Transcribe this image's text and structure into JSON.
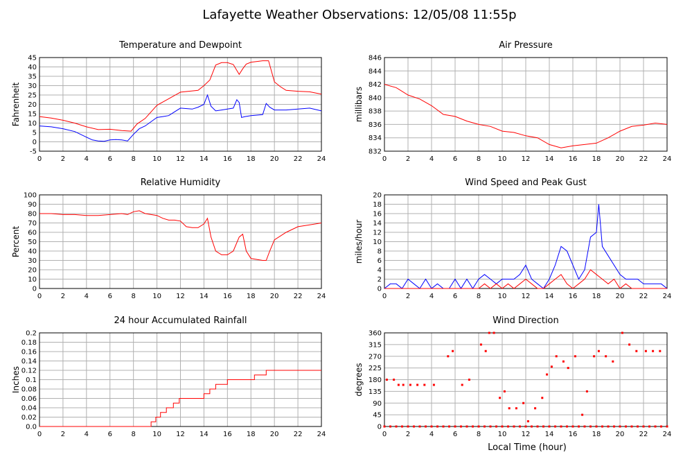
{
  "page": {
    "title": "Lafayette Weather Observations: 12/05/08 11:55p",
    "xlabel": "Local Time (hour)"
  },
  "chart_data": [
    {
      "id": "temp",
      "type": "line",
      "title": "Temperature and Dewpoint",
      "xlabel": "",
      "ylabel": "Fahrenheit",
      "xlim": [
        0,
        24
      ],
      "ylim": [
        -5,
        45
      ],
      "xticks": [
        0,
        2,
        4,
        6,
        8,
        10,
        12,
        14,
        16,
        18,
        20,
        22,
        24
      ],
      "yticks": [
        -5,
        0,
        5,
        10,
        15,
        20,
        25,
        30,
        35,
        40,
        45
      ],
      "grid": true,
      "series": [
        {
          "color": "#ff0000",
          "x": [
            0,
            1,
            2,
            3,
            4,
            5,
            6,
            7,
            7.8,
            8.3,
            9,
            10,
            11,
            12,
            13,
            13.5,
            14,
            14.5,
            15,
            15.5,
            16,
            16.5,
            17,
            17.3,
            17.6,
            18,
            19,
            19.5,
            20,
            20.5,
            21,
            22,
            23,
            24
          ],
          "y": [
            13.5,
            12.7,
            11.5,
            10,
            8,
            6.5,
            6.7,
            6,
            5.7,
            9.5,
            12.5,
            19.5,
            23,
            26.5,
            27.2,
            27.5,
            30,
            33,
            41,
            42.3,
            42.3,
            41.3,
            36,
            39,
            41.5,
            42.5,
            43.3,
            43.3,
            32,
            29.5,
            27.5,
            27,
            26.7,
            25.5
          ]
        },
        {
          "color": "#0000ff",
          "x": [
            0,
            1,
            2,
            3,
            4,
            4.5,
            5,
            5.5,
            6,
            6.5,
            7,
            7.5,
            8,
            8.5,
            9,
            10,
            10.5,
            11,
            12,
            13,
            13.5,
            14,
            14.3,
            14.6,
            15,
            15.5,
            16,
            16.5,
            16.8,
            17,
            17.2,
            17.5,
            18,
            19,
            19.3,
            19.6,
            20,
            21,
            22,
            23,
            24
          ],
          "y": [
            8.5,
            8,
            7,
            5.5,
            2.5,
            1,
            0.5,
            0.3,
            1,
            1.2,
            1,
            0.5,
            4,
            7,
            8.5,
            13,
            13.5,
            14,
            18,
            17.5,
            18.5,
            20,
            25,
            19,
            16.5,
            17,
            17.5,
            18,
            22.5,
            21,
            13,
            13.5,
            14,
            14.5,
            20.5,
            18.5,
            17,
            17,
            17.5,
            18,
            16.5
          ]
        }
      ]
    },
    {
      "id": "press",
      "type": "line",
      "title": "Air Pressure",
      "xlabel": "",
      "ylabel": "millibars",
      "xlim": [
        0,
        24
      ],
      "ylim": [
        832,
        846
      ],
      "xticks": [
        0,
        2,
        4,
        6,
        8,
        10,
        12,
        14,
        16,
        18,
        20,
        22,
        24
      ],
      "yticks": [
        832,
        834,
        836,
        838,
        840,
        842,
        844,
        846
      ],
      "grid": true,
      "series": [
        {
          "color": "#ff0000",
          "x": [
            0,
            1,
            2,
            3,
            4,
            5,
            6,
            7,
            8,
            9,
            10,
            11,
            12,
            13,
            14,
            15,
            16,
            17,
            18,
            19,
            20,
            21,
            22,
            23,
            24
          ],
          "y": [
            842,
            841.5,
            840.4,
            839.8,
            838.8,
            837.5,
            837.2,
            836.5,
            836,
            835.7,
            835,
            834.8,
            834.3,
            834,
            833,
            832.5,
            832.8,
            833,
            833.2,
            834,
            835,
            835.7,
            835.9,
            836.2,
            836
          ]
        }
      ]
    },
    {
      "id": "hum",
      "type": "line",
      "title": "Relative Humidity",
      "xlabel": "",
      "ylabel": "Percent",
      "xlim": [
        0,
        24
      ],
      "ylim": [
        0,
        100
      ],
      "xticks": [
        0,
        2,
        4,
        6,
        8,
        10,
        12,
        14,
        16,
        18,
        20,
        22,
        24
      ],
      "yticks": [
        0,
        10,
        20,
        30,
        40,
        50,
        60,
        70,
        80,
        90,
        100
      ],
      "grid": true,
      "series": [
        {
          "color": "#ff0000",
          "x": [
            0,
            1,
            2,
            3,
            4,
            5,
            6,
            7,
            7.5,
            8,
            8.5,
            9,
            10,
            10.5,
            11,
            11.5,
            12,
            12.5,
            13,
            13.5,
            14,
            14.3,
            14.6,
            15,
            15.5,
            16,
            16.5,
            17,
            17.3,
            17.6,
            18,
            18.5,
            19,
            19.3,
            19.6,
            20,
            21,
            22,
            23,
            24
          ],
          "y": [
            80,
            80,
            79,
            79,
            78,
            78,
            79,
            80,
            79,
            82,
            83,
            80,
            78,
            75,
            73,
            73,
            72,
            66,
            65,
            65,
            69,
            75,
            55,
            40,
            36,
            36,
            40,
            55,
            58,
            40,
            32,
            31,
            30,
            30,
            40,
            52,
            60,
            66,
            68,
            70
          ]
        }
      ]
    },
    {
      "id": "wind",
      "type": "line",
      "title": "Wind Speed and Peak Gust",
      "xlabel": "",
      "ylabel": "miles/hour",
      "xlim": [
        0,
        24
      ],
      "ylim": [
        0,
        20
      ],
      "xticks": [
        0,
        2,
        4,
        6,
        8,
        10,
        12,
        14,
        16,
        18,
        20,
        22,
        24
      ],
      "yticks": [
        0,
        2,
        4,
        6,
        8,
        10,
        12,
        14,
        16,
        18,
        20
      ],
      "grid": true,
      "series": [
        {
          "color": "#0000ff",
          "x": [
            0,
            0.5,
            1,
            1.5,
            2,
            2.5,
            3,
            3.5,
            4,
            4.5,
            5,
            5.5,
            6,
            6.5,
            7,
            7.5,
            8,
            8.5,
            9,
            9.5,
            10,
            10.5,
            11,
            11.5,
            12,
            12.5,
            13,
            13.5,
            14,
            14.5,
            15,
            15.5,
            16,
            16.5,
            17,
            17.5,
            18,
            18.2,
            18.5,
            19,
            19.5,
            20,
            20.5,
            21,
            21.5,
            22,
            22.5,
            23,
            23.5,
            24
          ],
          "y": [
            0,
            1,
            1,
            0,
            2,
            1,
            0,
            2,
            0,
            1,
            0,
            0,
            2,
            0,
            2,
            0,
            2,
            3,
            2,
            1,
            2,
            2,
            2,
            3,
            5,
            2,
            1,
            0,
            2,
            5,
            9,
            8,
            5,
            2,
            4,
            11,
            12,
            18,
            9,
            7,
            5,
            3,
            2,
            2,
            2,
            1,
            1,
            1,
            1,
            0
          ]
        },
        {
          "color": "#ff0000",
          "x": [
            0,
            8,
            8.5,
            9,
            9.5,
            10,
            10.5,
            11,
            11.5,
            12,
            12.5,
            13,
            13.5,
            14,
            14.5,
            15,
            15.5,
            16,
            16.5,
            17,
            17.5,
            18,
            18.5,
            19,
            19.5,
            20,
            20.5,
            21,
            21.5,
            24
          ],
          "y": [
            0,
            0,
            1,
            0,
            1,
            0,
            1,
            0,
            1,
            2,
            1,
            0,
            0,
            1,
            2,
            3,
            1,
            0,
            1,
            2,
            4,
            3,
            2,
            1,
            2,
            0,
            1,
            0,
            0,
            0
          ]
        }
      ]
    },
    {
      "id": "rain",
      "type": "line",
      "title": "24 hour Accumulated Rainfall",
      "xlabel": "",
      "ylabel": "Inches",
      "xlim": [
        0,
        24
      ],
      "ylim": [
        0,
        0.2
      ],
      "xticks": [
        0,
        2,
        4,
        6,
        8,
        10,
        12,
        14,
        16,
        18,
        20,
        22,
        24
      ],
      "yticks": [
        "0.0",
        "0.02",
        "0.04",
        "0.06",
        "0.08",
        "0.1",
        "0.12",
        "0.14",
        "0.16",
        "0.18",
        "0.2"
      ],
      "grid": true,
      "series": [
        {
          "color": "#ff0000",
          "x": [
            0,
            9.5,
            9.5,
            9.9,
            9.9,
            10.3,
            10.3,
            10.8,
            10.8,
            11.4,
            11.4,
            11.9,
            11.9,
            12.5,
            12.5,
            14,
            14,
            14.5,
            14.5,
            15,
            15,
            15.5,
            15.5,
            16,
            16,
            17,
            17,
            18.3,
            18.3,
            19.3,
            19.3,
            24
          ],
          "y": [
            0,
            0,
            0.01,
            0.01,
            0.02,
            0.02,
            0.03,
            0.03,
            0.04,
            0.04,
            0.05,
            0.05,
            0.06,
            0.06,
            0.06,
            0.06,
            0.07,
            0.07,
            0.08,
            0.08,
            0.09,
            0.09,
            0.09,
            0.09,
            0.1,
            0.1,
            0.1,
            0.1,
            0.11,
            0.11,
            0.12,
            0.12
          ]
        }
      ]
    },
    {
      "id": "dir",
      "type": "scatter",
      "title": "Wind Direction",
      "xlabel": "Local Time (hour)",
      "ylabel": "degrees",
      "xlim": [
        0,
        24
      ],
      "ylim": [
        0,
        360
      ],
      "xticks": [
        0,
        2,
        4,
        6,
        8,
        10,
        12,
        14,
        16,
        18,
        20,
        22,
        24
      ],
      "yticks": [
        0,
        45,
        90,
        135,
        180,
        225,
        270,
        315,
        360
      ],
      "grid": true,
      "series": [
        {
          "color": "#ff0000",
          "x": [
            0,
            0.5,
            1,
            1.5,
            2,
            2.5,
            3,
            3.5,
            4,
            4.5,
            5,
            5.5,
            6,
            6.5,
            7,
            7.5,
            8,
            8.5,
            9,
            9.5,
            10,
            10.5,
            11,
            11.5,
            12,
            12.5,
            13,
            13.5,
            14,
            14.5,
            15,
            15.5,
            16,
            16.5,
            17,
            17.5,
            18,
            18.5,
            19,
            19.5,
            20,
            20.5,
            21,
            21.5,
            22,
            22.5,
            23,
            23.5,
            24,
            0.2,
            0.8,
            1.2,
            1.6,
            2.2,
            2.8,
            3.4,
            4.2,
            5.4,
            5.8,
            6.6,
            7.2,
            8.2,
            8.6,
            8.9,
            9.3,
            9.8,
            10.2,
            10.6,
            11.2,
            11.8,
            12.2,
            12.8,
            13.4,
            13.8,
            14.2,
            14.6,
            15.2,
            15.6,
            16.2,
            16.8,
            17.2,
            17.8,
            18.2,
            18.8,
            19.4,
            20.2,
            20.8,
            21.4,
            22.2,
            22.8,
            23.4
          ],
          "y": [
            0,
            0,
            0,
            0,
            0,
            0,
            0,
            0,
            0,
            0,
            0,
            0,
            0,
            0,
            0,
            0,
            0,
            0,
            0,
            0,
            0,
            0,
            0,
            0,
            0,
            0,
            0,
            0,
            0,
            0,
            0,
            0,
            0,
            0,
            0,
            0,
            0,
            0,
            0,
            0,
            0,
            0,
            0,
            0,
            0,
            0,
            0,
            0,
            0,
            180,
            180,
            160,
            160,
            160,
            160,
            160,
            160,
            270,
            290,
            160,
            180,
            315,
            290,
            360,
            360,
            110,
            135,
            70,
            70,
            90,
            20,
            70,
            110,
            200,
            230,
            270,
            250,
            225,
            270,
            45,
            135,
            270,
            290,
            270,
            250,
            360,
            315,
            290,
            290,
            290,
            290
          ]
        }
      ]
    }
  ]
}
